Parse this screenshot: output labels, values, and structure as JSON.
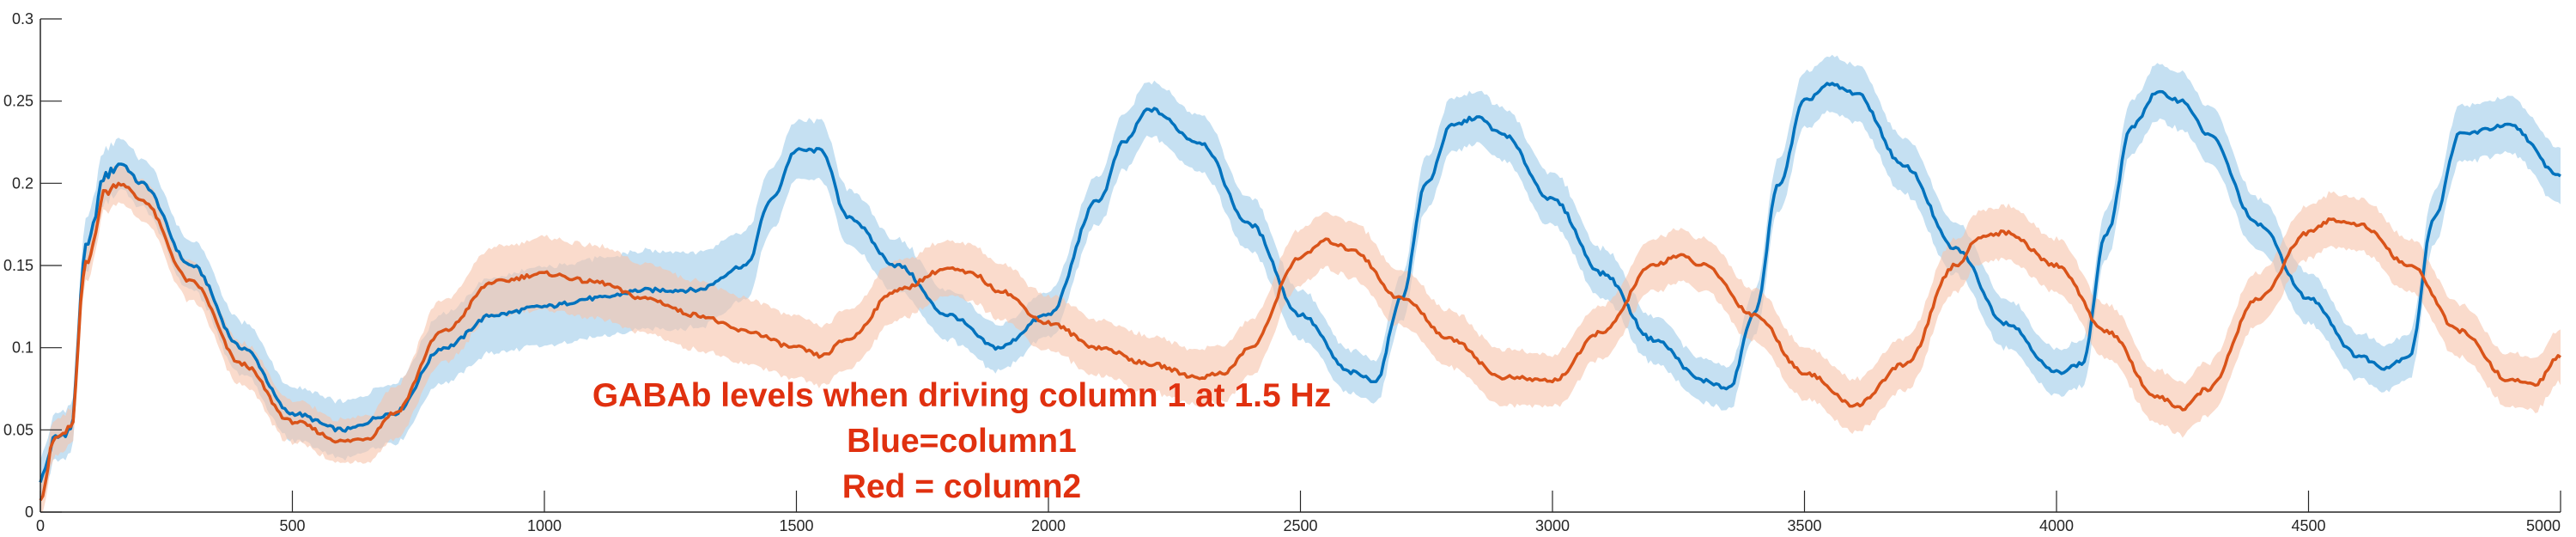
{
  "chart_data": {
    "type": "line",
    "title": "",
    "xlabel": "",
    "ylabel": "",
    "xlim": [
      0,
      5000
    ],
    "ylim": [
      0,
      0.3
    ],
    "grid": false,
    "legend": "none",
    "x_ticks": [
      {
        "label": "0",
        "value": 0
      },
      {
        "label": "500",
        "value": 500
      },
      {
        "label": "1000",
        "value": 1000
      },
      {
        "label": "1500",
        "value": 1500
      },
      {
        "label": "2000",
        "value": 2000
      },
      {
        "label": "2500",
        "value": 2500
      },
      {
        "label": "3000",
        "value": 3000
      },
      {
        "label": "3500",
        "value": 3500
      },
      {
        "label": "4000",
        "value": 4000
      },
      {
        "label": "4500",
        "value": 4500
      },
      {
        "label": "5000",
        "value": 5000
      }
    ],
    "y_ticks": [
      {
        "label": "0",
        "value": 0
      },
      {
        "label": "0.05",
        "value": 0.05
      },
      {
        "label": "0.1",
        "value": 0.1
      },
      {
        "label": "0.15",
        "value": 0.15
      },
      {
        "label": "0.2",
        "value": 0.2
      },
      {
        "label": "0.25",
        "value": 0.25
      },
      {
        "label": "0.3",
        "value": 0.3
      }
    ],
    "annotation_lines": [
      "GABAb levels when driving column 1 at 1.5 Hz",
      "Blue=column1",
      "Red = column2"
    ],
    "series": [
      {
        "color": "#0072bd",
        "band_color": "#9fcbe9",
        "x": [
          0,
          30,
          60,
          90,
          130,
          160,
          200,
          300,
          400,
          500,
          600,
          700,
          800,
          900,
          1000,
          1100,
          1200,
          1300,
          1400,
          1450,
          1500,
          1550,
          1600,
          1700,
          1800,
          1900,
          2000,
          2100,
          2150,
          2200,
          2300,
          2400,
          2500,
          2600,
          2650,
          2700,
          2750,
          2800,
          2850,
          2900,
          3000,
          3100,
          3200,
          3300,
          3350,
          3400,
          3450,
          3500,
          3550,
          3600,
          3700,
          3800,
          3900,
          4000,
          4050,
          4100,
          4150,
          4200,
          4250,
          4300,
          4400,
          4500,
          4600,
          4650,
          4700,
          4750,
          4800,
          4900,
          5000
        ],
        "y": [
          0.02,
          0.045,
          0.05,
          0.16,
          0.205,
          0.212,
          0.2,
          0.15,
          0.1,
          0.06,
          0.05,
          0.06,
          0.1,
          0.12,
          0.125,
          0.13,
          0.135,
          0.135,
          0.15,
          0.19,
          0.22,
          0.22,
          0.18,
          0.15,
          0.12,
          0.1,
          0.12,
          0.19,
          0.225,
          0.245,
          0.225,
          0.175,
          0.12,
          0.085,
          0.08,
          0.13,
          0.2,
          0.235,
          0.24,
          0.23,
          0.19,
          0.145,
          0.105,
          0.08,
          0.075,
          0.12,
          0.2,
          0.25,
          0.26,
          0.255,
          0.21,
          0.16,
          0.115,
          0.085,
          0.09,
          0.17,
          0.235,
          0.255,
          0.25,
          0.23,
          0.175,
          0.13,
          0.095,
          0.088,
          0.095,
          0.18,
          0.23,
          0.235,
          0.205
        ],
        "band": [
          0.012,
          0.013,
          0.013,
          0.015,
          0.015,
          0.015,
          0.014,
          0.014,
          0.015,
          0.015,
          0.016,
          0.017,
          0.02,
          0.022,
          0.023,
          0.023,
          0.023,
          0.022,
          0.02,
          0.018,
          0.017,
          0.017,
          0.016,
          0.015,
          0.014,
          0.013,
          0.013,
          0.014,
          0.016,
          0.016,
          0.016,
          0.015,
          0.014,
          0.012,
          0.012,
          0.013,
          0.015,
          0.015,
          0.015,
          0.015,
          0.015,
          0.014,
          0.013,
          0.012,
          0.012,
          0.013,
          0.015,
          0.016,
          0.016,
          0.016,
          0.016,
          0.015,
          0.014,
          0.013,
          0.013,
          0.014,
          0.015,
          0.016,
          0.016,
          0.016,
          0.015,
          0.014,
          0.013,
          0.013,
          0.013,
          0.015,
          0.016,
          0.016,
          0.016
        ]
      },
      {
        "color": "#d95319",
        "band_color": "#f6c3aa",
        "x": [
          0,
          30,
          60,
          90,
          130,
          160,
          200,
          300,
          400,
          500,
          600,
          650,
          700,
          800,
          900,
          1000,
          1100,
          1200,
          1300,
          1400,
          1500,
          1550,
          1600,
          1700,
          1800,
          1850,
          1900,
          2000,
          2100,
          2200,
          2300,
          2350,
          2400,
          2500,
          2550,
          2600,
          2700,
          2800,
          2900,
          3000,
          3100,
          3200,
          3250,
          3300,
          3400,
          3500,
          3600,
          3700,
          3800,
          3850,
          3900,
          4000,
          4100,
          4200,
          4250,
          4300,
          4400,
          4500,
          4550,
          4600,
          4700,
          4800,
          4900,
          4950,
          5000
        ],
        "y": [
          0.01,
          0.045,
          0.05,
          0.15,
          0.195,
          0.2,
          0.19,
          0.14,
          0.09,
          0.055,
          0.043,
          0.045,
          0.06,
          0.11,
          0.14,
          0.145,
          0.14,
          0.13,
          0.12,
          0.11,
          0.1,
          0.095,
          0.105,
          0.135,
          0.148,
          0.145,
          0.135,
          0.115,
          0.1,
          0.09,
          0.082,
          0.085,
          0.1,
          0.155,
          0.165,
          0.16,
          0.13,
          0.105,
          0.082,
          0.08,
          0.11,
          0.15,
          0.156,
          0.15,
          0.12,
          0.085,
          0.065,
          0.09,
          0.15,
          0.168,
          0.17,
          0.15,
          0.11,
          0.07,
          0.063,
          0.075,
          0.13,
          0.17,
          0.178,
          0.175,
          0.15,
          0.11,
          0.08,
          0.078,
          0.095
        ],
        "band": [
          0.01,
          0.01,
          0.01,
          0.01,
          0.01,
          0.011,
          0.011,
          0.011,
          0.012,
          0.012,
          0.012,
          0.013,
          0.015,
          0.018,
          0.02,
          0.021,
          0.021,
          0.02,
          0.02,
          0.019,
          0.018,
          0.017,
          0.017,
          0.017,
          0.016,
          0.016,
          0.016,
          0.016,
          0.016,
          0.016,
          0.016,
          0.016,
          0.016,
          0.016,
          0.016,
          0.016,
          0.016,
          0.016,
          0.016,
          0.015,
          0.015,
          0.015,
          0.015,
          0.015,
          0.015,
          0.015,
          0.015,
          0.015,
          0.015,
          0.015,
          0.015,
          0.015,
          0.015,
          0.015,
          0.015,
          0.015,
          0.015,
          0.015,
          0.015,
          0.015,
          0.015,
          0.015,
          0.015,
          0.015,
          0.015
        ]
      }
    ]
  }
}
